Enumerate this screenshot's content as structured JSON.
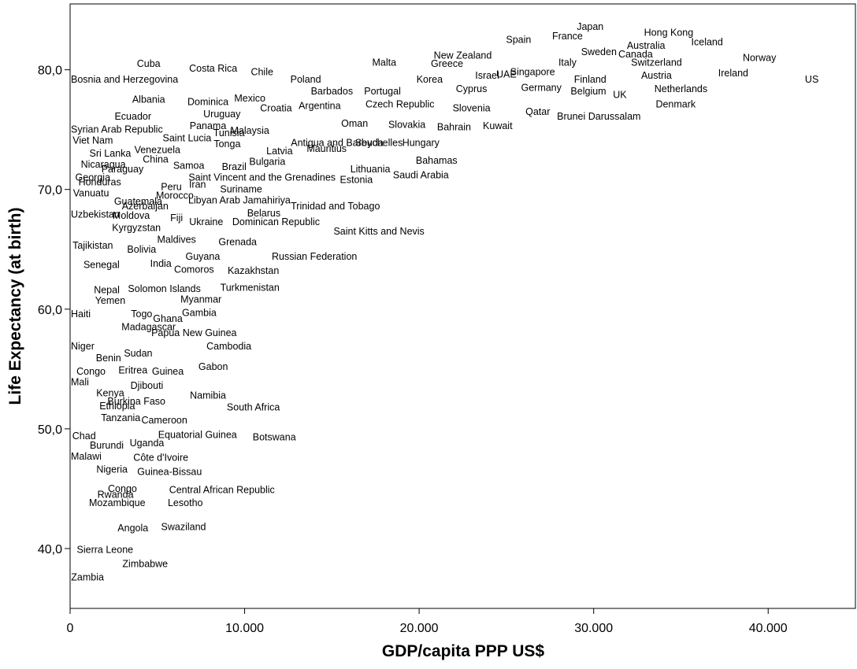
{
  "chart_data": {
    "type": "scatter",
    "title": "",
    "xlabel": "GDP/capita PPP US$",
    "ylabel": "Life Expectancy (at birth)",
    "xlim": [
      0,
      45000
    ],
    "ylim": [
      35,
      85.5
    ],
    "xticks": [
      0,
      10000,
      20000,
      30000,
      40000
    ],
    "xtick_labels": [
      "0",
      "10.000",
      "20.000",
      "30.000",
      "40.000"
    ],
    "yticks": [
      40,
      50,
      60,
      70,
      80
    ],
    "ytick_labels": [
      "40,0",
      "50,0",
      "60,0",
      "70,0",
      "80,0"
    ],
    "grid": false,
    "legend": "none",
    "point_marker": "label",
    "points": [
      {
        "label": "Japan",
        "x": 29800,
        "y": 83.6
      },
      {
        "label": "France",
        "x": 28500,
        "y": 82.8
      },
      {
        "label": "Spain",
        "x": 25700,
        "y": 82.5
      },
      {
        "label": "Hong Kong",
        "x": 34300,
        "y": 83.1
      },
      {
        "label": "Australia",
        "x": 33000,
        "y": 82.0
      },
      {
        "label": "Canada",
        "x": 32400,
        "y": 81.3
      },
      {
        "label": "Sweden",
        "x": 30300,
        "y": 81.5
      },
      {
        "label": "Iceland",
        "x": 36500,
        "y": 82.3
      },
      {
        "label": "New Zealand",
        "x": 22500,
        "y": 81.2
      },
      {
        "label": "Italy",
        "x": 28500,
        "y": 80.6
      },
      {
        "label": "Switzerland",
        "x": 33600,
        "y": 80.6
      },
      {
        "label": "Norway",
        "x": 39500,
        "y": 81.0
      },
      {
        "label": "Malta",
        "x": 18000,
        "y": 80.6
      },
      {
        "label": "Greece",
        "x": 21600,
        "y": 80.5
      },
      {
        "label": "Israel",
        "x": 23900,
        "y": 79.5
      },
      {
        "label": "UAE",
        "x": 25000,
        "y": 79.6
      },
      {
        "label": "Singapore",
        "x": 26500,
        "y": 79.8
      },
      {
        "label": "Austria",
        "x": 33600,
        "y": 79.5
      },
      {
        "label": "Ireland",
        "x": 38000,
        "y": 79.7
      },
      {
        "label": "Cuba",
        "x": 4500,
        "y": 80.5
      },
      {
        "label": "Costa Rica",
        "x": 8200,
        "y": 80.1
      },
      {
        "label": "Chile",
        "x": 11000,
        "y": 79.8
      },
      {
        "label": "Bosnia and Herzegovina",
        "x": 3000,
        "y": 79.2
      },
      {
        "label": "Poland",
        "x": 13500,
        "y": 79.2
      },
      {
        "label": "Korea",
        "x": 20600,
        "y": 79.2
      },
      {
        "label": "Cyprus",
        "x": 23000,
        "y": 78.4
      },
      {
        "label": "Germany",
        "x": 27000,
        "y": 78.5
      },
      {
        "label": "Finland",
        "x": 29800,
        "y": 79.2
      },
      {
        "label": "US",
        "x": 42500,
        "y": 79.2
      },
      {
        "label": "Netherlands",
        "x": 35000,
        "y": 78.4
      },
      {
        "label": "Belgium",
        "x": 29700,
        "y": 78.2
      },
      {
        "label": "UK",
        "x": 31500,
        "y": 77.9
      },
      {
        "label": "Barbados",
        "x": 15000,
        "y": 78.2
      },
      {
        "label": "Portugal",
        "x": 17900,
        "y": 78.2
      },
      {
        "label": "Denmark",
        "x": 34700,
        "y": 77.1
      },
      {
        "label": "Albania",
        "x": 4500,
        "y": 77.5
      },
      {
        "label": "Dominica",
        "x": 7900,
        "y": 77.3
      },
      {
        "label": "Mexico",
        "x": 10300,
        "y": 77.6
      },
      {
        "label": "Croatia",
        "x": 11800,
        "y": 76.8
      },
      {
        "label": "Argentina",
        "x": 14300,
        "y": 77.0
      },
      {
        "label": "Czech Republic",
        "x": 18900,
        "y": 77.1
      },
      {
        "label": "Slovenia",
        "x": 23000,
        "y": 76.8
      },
      {
        "label": "Qatar",
        "x": 26800,
        "y": 76.5
      },
      {
        "label": "Brunei Darussalam",
        "x": 30300,
        "y": 76.1
      },
      {
        "label": "Ecuador",
        "x": 3600,
        "y": 76.1
      },
      {
        "label": "Uruguay",
        "x": 8700,
        "y": 76.3
      },
      {
        "label": "Panama",
        "x": 7900,
        "y": 75.3
      },
      {
        "label": "Oman",
        "x": 16300,
        "y": 75.5
      },
      {
        "label": "Slovakia",
        "x": 19300,
        "y": 75.4
      },
      {
        "label": "Bahrain",
        "x": 22000,
        "y": 75.2
      },
      {
        "label": "Kuwait",
        "x": 24500,
        "y": 75.3
      },
      {
        "label": "Syrian Arab Republic",
        "x": 2600,
        "y": 75.0
      },
      {
        "label": "Malaysia",
        "x": 10300,
        "y": 74.9
      },
      {
        "label": "Tunisia",
        "x": 9100,
        "y": 74.7
      },
      {
        "label": "Saint Lucia",
        "x": 6700,
        "y": 74.3
      },
      {
        "label": "Viet Nam",
        "x": 1300,
        "y": 74.1
      },
      {
        "label": "Tonga",
        "x": 9000,
        "y": 73.8
      },
      {
        "label": "Antigua and Barbuda",
        "x": 15300,
        "y": 73.9
      },
      {
        "label": "Seychelles",
        "x": 17700,
        "y": 73.9
      },
      {
        "label": "Hungary",
        "x": 20100,
        "y": 73.9
      },
      {
        "label": "Mauritius",
        "x": 14700,
        "y": 73.4
      },
      {
        "label": "Latvia",
        "x": 12000,
        "y": 73.2
      },
      {
        "label": "Venezuela",
        "x": 5000,
        "y": 73.3
      },
      {
        "label": "Sri Lanka",
        "x": 2300,
        "y": 73.0
      },
      {
        "label": "China",
        "x": 4900,
        "y": 72.5
      },
      {
        "label": "Bahamas",
        "x": 21000,
        "y": 72.4
      },
      {
        "label": "Bulgaria",
        "x": 11300,
        "y": 72.3
      },
      {
        "label": "Nicaragua",
        "x": 1900,
        "y": 72.1
      },
      {
        "label": "Samoa",
        "x": 6800,
        "y": 72.0
      },
      {
        "label": "Brazil",
        "x": 9400,
        "y": 71.9
      },
      {
        "label": "Paraguay",
        "x": 3000,
        "y": 71.7
      },
      {
        "label": "Lithuania",
        "x": 17200,
        "y": 71.7
      },
      {
        "label": "Saudi Arabia",
        "x": 20100,
        "y": 71.2
      },
      {
        "label": "Georgia",
        "x": 1300,
        "y": 71.0
      },
      {
        "label": "Saint Vincent and the Grenadines",
        "x": 11000,
        "y": 71.0
      },
      {
        "label": "Estonia",
        "x": 16400,
        "y": 70.8
      },
      {
        "label": "Honduras",
        "x": 1700,
        "y": 70.6
      },
      {
        "label": "Iran",
        "x": 7300,
        "y": 70.4
      },
      {
        "label": "Peru",
        "x": 5800,
        "y": 70.2
      },
      {
        "label": "Suriname",
        "x": 9800,
        "y": 70.0
      },
      {
        "label": "Vanuatu",
        "x": 1200,
        "y": 69.7
      },
      {
        "label": "Morocco",
        "x": 6000,
        "y": 69.5
      },
      {
        "label": "Libyan Arab Jamahiriya",
        "x": 9700,
        "y": 69.1
      },
      {
        "label": "Guatemala",
        "x": 3900,
        "y": 69.0
      },
      {
        "label": "Trinidad and Tobago",
        "x": 15200,
        "y": 68.6
      },
      {
        "label": "Azerbaijan",
        "x": 4300,
        "y": 68.6
      },
      {
        "label": "Uzbekistan",
        "x": 1300,
        "y": 67.9
      },
      {
        "label": "Moldova",
        "x": 3500,
        "y": 67.8
      },
      {
        "label": "Belarus",
        "x": 11100,
        "y": 68.0
      },
      {
        "label": "Fiji",
        "x": 6100,
        "y": 67.6
      },
      {
        "label": "Ukraine",
        "x": 7800,
        "y": 67.3
      },
      {
        "label": "Dominican Republic",
        "x": 11800,
        "y": 67.3
      },
      {
        "label": "Kyrgyzstan",
        "x": 3800,
        "y": 66.8
      },
      {
        "label": "Saint Kitts and Nevis",
        "x": 17700,
        "y": 66.5
      },
      {
        "label": "Maldives",
        "x": 6100,
        "y": 65.8
      },
      {
        "label": "Grenada",
        "x": 9600,
        "y": 65.6
      },
      {
        "label": "Tajikistan",
        "x": 1300,
        "y": 65.3
      },
      {
        "label": "Bolivia",
        "x": 4100,
        "y": 65.0
      },
      {
        "label": "Guyana",
        "x": 7600,
        "y": 64.4
      },
      {
        "label": "Russian Federation",
        "x": 14000,
        "y": 64.4
      },
      {
        "label": "Senegal",
        "x": 1800,
        "y": 63.7
      },
      {
        "label": "India",
        "x": 5200,
        "y": 63.8
      },
      {
        "label": "Comoros",
        "x": 7100,
        "y": 63.3
      },
      {
        "label": "Kazakhstan",
        "x": 10500,
        "y": 63.2
      },
      {
        "label": "Turkmenistan",
        "x": 10300,
        "y": 61.8
      },
      {
        "label": "Nepal",
        "x": 2100,
        "y": 61.6
      },
      {
        "label": "Solomon Islands",
        "x": 5400,
        "y": 61.7
      },
      {
        "label": "Myanmar",
        "x": 7500,
        "y": 60.8
      },
      {
        "label": "Yemen",
        "x": 2300,
        "y": 60.7
      },
      {
        "label": "Haiti",
        "x": 600,
        "y": 59.6
      },
      {
        "label": "Togo",
        "x": 4100,
        "y": 59.6
      },
      {
        "label": "Gambia",
        "x": 7400,
        "y": 59.7
      },
      {
        "label": "Ghana",
        "x": 5600,
        "y": 59.2
      },
      {
        "label": "Madagascar",
        "x": 4500,
        "y": 58.5
      },
      {
        "label": "Papua New Guinea",
        "x": 7100,
        "y": 58.0
      },
      {
        "label": "Cambodia",
        "x": 9100,
        "y": 56.9
      },
      {
        "label": "Niger",
        "x": 700,
        "y": 56.9
      },
      {
        "label": "Sudan",
        "x": 3900,
        "y": 56.3
      },
      {
        "label": "Benin",
        "x": 2200,
        "y": 55.9
      },
      {
        "label": "Gabon",
        "x": 8200,
        "y": 55.2
      },
      {
        "label": "Eritrea",
        "x": 3600,
        "y": 54.9
      },
      {
        "label": "Guinea",
        "x": 5600,
        "y": 54.8
      },
      {
        "label": "Congo",
        "x": 1200,
        "y": 54.8
      },
      {
        "label": "Mali",
        "x": 500,
        "y": 53.9
      },
      {
        "label": "Djibouti",
        "x": 4400,
        "y": 53.6
      },
      {
        "label": "Kenya",
        "x": 2300,
        "y": 53.0
      },
      {
        "label": "Namibia",
        "x": 7900,
        "y": 52.8
      },
      {
        "label": "Burkina Faso",
        "x": 3800,
        "y": 52.3
      },
      {
        "label": "South Africa",
        "x": 10500,
        "y": 51.8
      },
      {
        "label": "Ethiopia",
        "x": 2700,
        "y": 51.9
      },
      {
        "label": "Tanzania",
        "x": 2900,
        "y": 50.9
      },
      {
        "label": "Cameroon",
        "x": 5400,
        "y": 50.7
      },
      {
        "label": "Equatorial Guinea",
        "x": 7300,
        "y": 49.5
      },
      {
        "label": "Botswana",
        "x": 11700,
        "y": 49.3
      },
      {
        "label": "Chad",
        "x": 800,
        "y": 49.4
      },
      {
        "label": "Uganda",
        "x": 4400,
        "y": 48.8
      },
      {
        "label": "Burundi",
        "x": 2100,
        "y": 48.6
      },
      {
        "label": "Malawi",
        "x": 900,
        "y": 47.7
      },
      {
        "label": "Côte d'Ivoire",
        "x": 5200,
        "y": 47.6
      },
      {
        "label": "Nigeria",
        "x": 2400,
        "y": 46.6
      },
      {
        "label": "Guinea-Bissau",
        "x": 5700,
        "y": 46.4
      },
      {
        "label": "Congo",
        "x": 3000,
        "y": 45.0
      },
      {
        "label": "Central African Republic",
        "x": 8700,
        "y": 44.9
      },
      {
        "label": "Rwanda",
        "x": 2600,
        "y": 44.5
      },
      {
        "label": "Mozambique",
        "x": 2700,
        "y": 43.8
      },
      {
        "label": "Lesotho",
        "x": 6600,
        "y": 43.8
      },
      {
        "label": "Angola",
        "x": 3600,
        "y": 41.7
      },
      {
        "label": "Swaziland",
        "x": 6500,
        "y": 41.8
      },
      {
        "label": "Sierra Leone",
        "x": 2000,
        "y": 39.9
      },
      {
        "label": "Zimbabwe",
        "x": 4300,
        "y": 38.7
      },
      {
        "label": "Zambia",
        "x": 1000,
        "y": 37.6
      }
    ]
  }
}
